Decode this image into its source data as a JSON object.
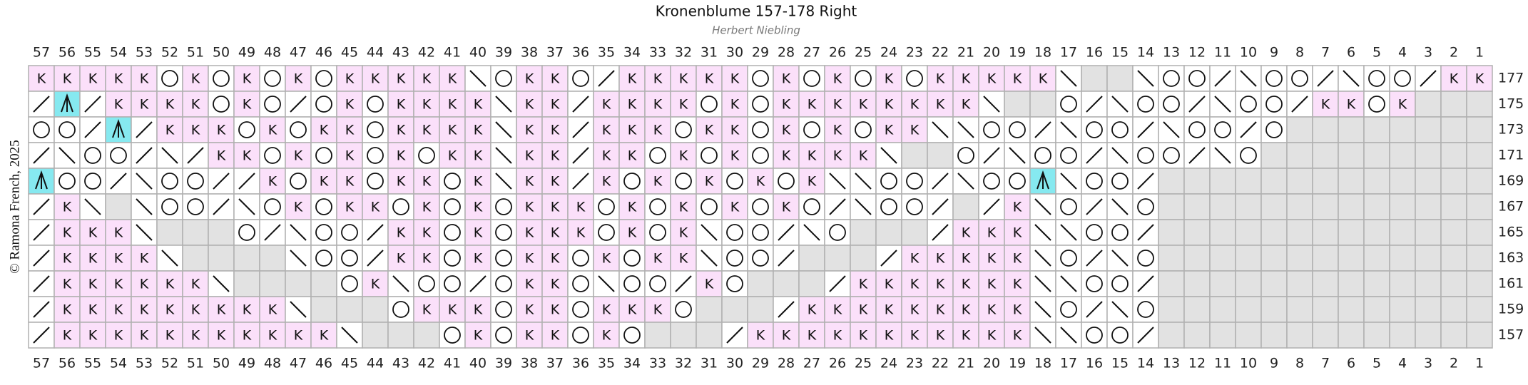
{
  "title": "Kronenblume 157-178 Right",
  "subtitle": "Herbert Niebling",
  "copyright": "© Ramona French, 2025",
  "columns": [
    57,
    56,
    55,
    54,
    53,
    52,
    51,
    50,
    49,
    48,
    47,
    46,
    45,
    44,
    43,
    42,
    41,
    40,
    39,
    38,
    37,
    36,
    35,
    34,
    33,
    32,
    31,
    30,
    29,
    28,
    27,
    26,
    25,
    24,
    23,
    22,
    21,
    20,
    19,
    18,
    17,
    16,
    15,
    14,
    13,
    12,
    11,
    10,
    9,
    8,
    7,
    6,
    5,
    4,
    3,
    2,
    1
  ],
  "rows": [
    {
      "label": 177,
      "cells": [
        "K",
        "K",
        "K",
        "K",
        "K",
        "O",
        "K",
        "O",
        "K",
        "O",
        "K",
        "O",
        "K",
        "K",
        "K",
        "K",
        "K",
        "\\",
        "O",
        "K",
        "K",
        "O",
        "/",
        "K",
        "K",
        "K",
        "K",
        "K",
        "O",
        "K",
        "O",
        "K",
        "O",
        "K",
        "O",
        "K",
        "K",
        "K",
        "K",
        "K",
        "\\",
        "-",
        "-",
        "\\",
        "O",
        "O",
        "/",
        "\\",
        "O",
        "O",
        "/",
        "\\",
        "O",
        "O",
        "/",
        "K",
        "K"
      ]
    },
    {
      "label": 175,
      "cells": [
        "/",
        "A",
        "/",
        "K",
        "K",
        "K",
        "K",
        "O",
        "K",
        "O",
        "/",
        "O",
        "K",
        "O",
        "K",
        "K",
        "K",
        "K",
        "\\",
        "K",
        "K",
        "/",
        "K",
        "K",
        "K",
        "K",
        "O",
        "K",
        "O",
        "K",
        "K",
        "K",
        "K",
        "K",
        "K",
        "K",
        "K",
        "\\",
        "-",
        "-",
        "O",
        "/",
        "\\",
        "O",
        "O",
        "/",
        "\\",
        "O",
        "O",
        "/",
        "K",
        "K",
        "O",
        "K",
        "-",
        "-",
        "-"
      ]
    },
    {
      "label": 173,
      "cells": [
        "O",
        "O",
        "/",
        "A",
        "/",
        "K",
        "K",
        "K",
        "O",
        "K",
        "O",
        "K",
        "K",
        "O",
        "K",
        "K",
        "K",
        "K",
        "\\",
        "K",
        "K",
        "/",
        "K",
        "K",
        "K",
        "O",
        "K",
        "K",
        "O",
        "K",
        "O",
        "K",
        "O",
        "K",
        "K",
        "\\",
        "\\",
        "O",
        "O",
        "/",
        "\\",
        "O",
        "O",
        "/",
        "\\",
        "O",
        "O",
        "/",
        "O",
        "-",
        "-",
        "-",
        "-",
        "-",
        "-",
        "-",
        "-"
      ]
    },
    {
      "label": 171,
      "cells": [
        "/",
        "\\",
        "O",
        "O",
        "/",
        "\\",
        "/",
        "K",
        "K",
        "O",
        "K",
        "O",
        "K",
        "O",
        "K",
        "O",
        "K",
        "K",
        "\\",
        "K",
        "K",
        "/",
        "K",
        "K",
        "O",
        "K",
        "O",
        "K",
        "O",
        "K",
        "K",
        "K",
        "K",
        "\\",
        "-",
        "-",
        "O",
        "/",
        "\\",
        "O",
        "O",
        "/",
        "\\",
        "O",
        "O",
        "/",
        "\\",
        "O",
        "-",
        "-",
        "-",
        "-",
        "-",
        "-",
        "-",
        "-",
        "-"
      ]
    },
    {
      "label": 169,
      "cells": [
        "A",
        "O",
        "O",
        "/",
        "\\",
        "O",
        "O",
        "/",
        "/",
        "K",
        "O",
        "K",
        "K",
        "O",
        "K",
        "K",
        "O",
        "K",
        "\\",
        "K",
        "K",
        "/",
        "K",
        "O",
        "K",
        "O",
        "K",
        "O",
        "K",
        "O",
        "K",
        "\\",
        "\\",
        "O",
        "O",
        "/",
        "\\",
        "O",
        "O",
        "A",
        "\\",
        "O",
        "O",
        "/",
        "-",
        "-",
        "-",
        "-",
        "-",
        "-",
        "-",
        "-",
        "-",
        "-",
        "-",
        "-",
        "-"
      ]
    },
    {
      "label": 167,
      "cells": [
        "/",
        "K",
        "\\",
        "-",
        "\\",
        "O",
        "O",
        "/",
        "\\",
        "O",
        "K",
        "O",
        "K",
        "K",
        "O",
        "K",
        "O",
        "K",
        "O",
        "K",
        "K",
        "K",
        "O",
        "K",
        "O",
        "K",
        "O",
        "K",
        "O",
        "K",
        "O",
        "/",
        "\\",
        "O",
        "O",
        "/",
        "-",
        "/",
        "K",
        "\\",
        "O",
        "/",
        "\\",
        "O",
        "-",
        "-",
        "-",
        "-",
        "-",
        "-",
        "-",
        "-",
        "-",
        "-",
        "-",
        "-",
        "-"
      ]
    },
    {
      "label": 165,
      "cells": [
        "/",
        "K",
        "K",
        "K",
        "\\",
        "-",
        "-",
        "-",
        "O",
        "/",
        "\\",
        "O",
        "O",
        "/",
        "K",
        "K",
        "O",
        "K",
        "O",
        "K",
        "K",
        "K",
        "O",
        "K",
        "O",
        "K",
        "\\",
        "O",
        "O",
        "/",
        "\\",
        "O",
        "-",
        "-",
        "-",
        "/",
        "K",
        "K",
        "K",
        "\\",
        "\\",
        "O",
        "O",
        "/",
        "-",
        "-",
        "-",
        "-",
        "-",
        "-",
        "-",
        "-",
        "-",
        "-",
        "-",
        "-",
        "-"
      ]
    },
    {
      "label": 163,
      "cells": [
        "/",
        "K",
        "K",
        "K",
        "K",
        "\\",
        "-",
        "-",
        "-",
        "-",
        "\\",
        "O",
        "O",
        "/",
        "K",
        "K",
        "O",
        "K",
        "O",
        "K",
        "K",
        "O",
        "K",
        "O",
        "K",
        "K",
        "\\",
        "O",
        "O",
        "/",
        "-",
        "-",
        "-",
        "/",
        "K",
        "K",
        "K",
        "K",
        "K",
        "\\",
        "O",
        "/",
        "\\",
        "O",
        "-",
        "-",
        "-",
        "-",
        "-",
        "-",
        "-",
        "-",
        "-",
        "-",
        "-",
        "-",
        "-"
      ]
    },
    {
      "label": 161,
      "cells": [
        "/",
        "K",
        "K",
        "K",
        "K",
        "K",
        "K",
        "\\",
        "-",
        "-",
        "-",
        "-",
        "O",
        "K",
        "\\",
        "O",
        "O",
        "/",
        "O",
        "K",
        "K",
        "O",
        "\\",
        "O",
        "O",
        "/",
        "K",
        "O",
        "-",
        "-",
        "-",
        "/",
        "K",
        "K",
        "K",
        "K",
        "K",
        "K",
        "K",
        "\\",
        "\\",
        "O",
        "O",
        "/",
        "-",
        "-",
        "-",
        "-",
        "-",
        "-",
        "-",
        "-",
        "-",
        "-",
        "-",
        "-",
        "-"
      ]
    },
    {
      "label": 159,
      "cells": [
        "/",
        "K",
        "K",
        "K",
        "K",
        "K",
        "K",
        "K",
        "K",
        "K",
        "\\",
        "-",
        "-",
        "-",
        "O",
        "K",
        "K",
        "K",
        "O",
        "K",
        "K",
        "O",
        "K",
        "K",
        "K",
        "O",
        "-",
        "-",
        "-",
        "/",
        "K",
        "K",
        "K",
        "K",
        "K",
        "K",
        "K",
        "K",
        "K",
        "\\",
        "O",
        "/",
        "\\",
        "O",
        "-",
        "-",
        "-",
        "-",
        "-",
        "-",
        "-",
        "-",
        "-",
        "-",
        "-",
        "-",
        "-"
      ]
    },
    {
      "label": 157,
      "cells": [
        "/",
        "K",
        "K",
        "K",
        "K",
        "K",
        "K",
        "K",
        "K",
        "K",
        "K",
        "K",
        "\\",
        "-",
        "-",
        "-",
        "O",
        "K",
        "O",
        "K",
        "K",
        "O",
        "K",
        "O",
        "-",
        "-",
        "-",
        "/",
        "K",
        "K",
        "K",
        "K",
        "K",
        "K",
        "K",
        "K",
        "K",
        "K",
        "K",
        "\\",
        "\\",
        "O",
        "O",
        "/",
        "-",
        "-",
        "-",
        "-",
        "-",
        "-",
        "-",
        "-",
        "-",
        "-",
        "-",
        "-",
        "-"
      ]
    }
  ]
}
